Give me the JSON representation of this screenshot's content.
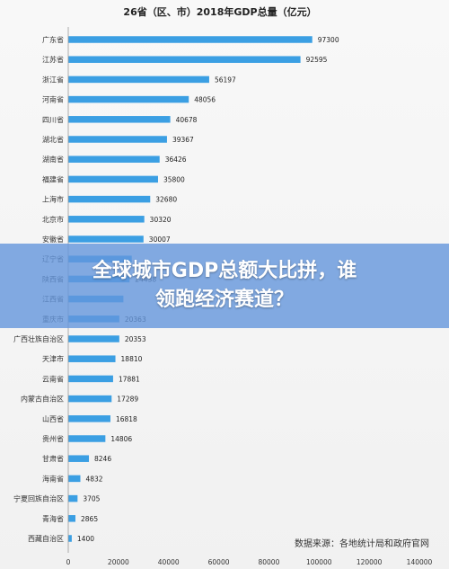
{
  "chart_data": {
    "type": "bar",
    "orientation": "horizontal",
    "title": "26省（区、市）2018年GDP总量（亿元）",
    "categories": [
      "广东省",
      "江苏省",
      "浙江省",
      "河南省",
      "四川省",
      "湖北省",
      "湖南省",
      "福建省",
      "上海市",
      "北京市",
      "安徽省",
      "辽宁省",
      "陕西省",
      "江西省",
      "重庆市",
      "广西壮族自治区",
      "天津市",
      "云南省",
      "内蒙古自治区",
      "山西省",
      "贵州省",
      "甘肃省",
      "海南省",
      "宁夏回族自治区",
      "青海省",
      "西藏自治区"
    ],
    "values": [
      97300,
      92595,
      56197,
      48056,
      40678,
      39367,
      36426,
      35800,
      32680,
      30320,
      30007,
      25315,
      24438,
      21985,
      20363,
      20353,
      18810,
      17881,
      17289,
      16818,
      14806,
      8246,
      4832,
      3705,
      2865,
      1400
    ],
    "value_labels": [
      "97300",
      "92595",
      "56197",
      "48056",
      "40678",
      "39367",
      "36426",
      "35800",
      "32680",
      "30320",
      "30007",
      "",
      "24438",
      "",
      "20363",
      "20353",
      "18810",
      "17881",
      "17289",
      "16818",
      "14806",
      "8246",
      "4832",
      "3705",
      "2865",
      "1400"
    ],
    "xlim": [
      0,
      140000
    ],
    "x_ticks": [
      "0",
      "20000",
      "40000",
      "60000",
      "80000",
      "100000",
      "120000",
      "140000"
    ],
    "bar_color": "#3b9fe3",
    "grid": false,
    "source": "数据来源：各地统计局和政府官网"
  },
  "banner": {
    "line1": "全球城市GDP总额大比拼，谁",
    "line2": "领跑经济赛道？"
  }
}
